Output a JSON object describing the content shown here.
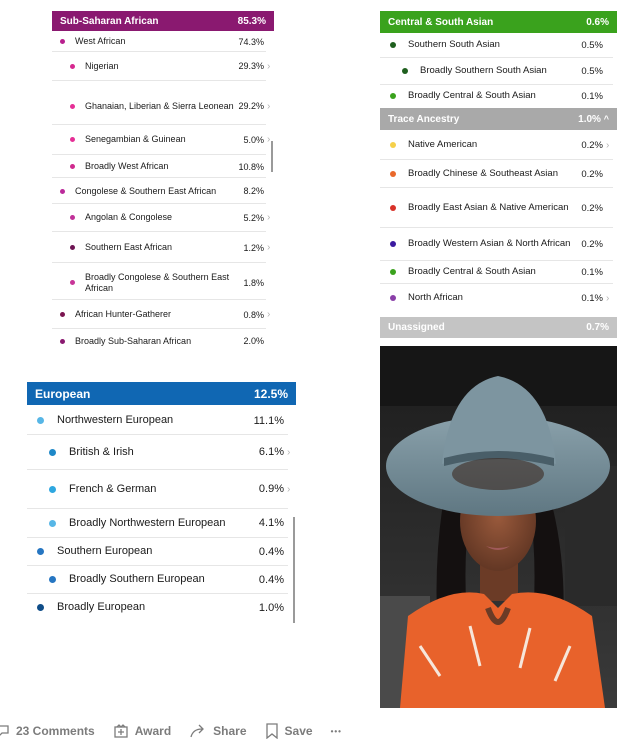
{
  "ssa": {
    "header": {
      "label": "Sub-Saharan African",
      "pct": "85.3%",
      "color": "#8a1970"
    },
    "rows": [
      {
        "label": "West African",
        "pct": "74.3%",
        "color": "#b81f8e",
        "indent": 0,
        "chev": false
      },
      {
        "label": "Nigerian",
        "pct": "29.3%",
        "color": "#d6288f",
        "indent": 1,
        "chev": true
      },
      {
        "label": "Ghanaian, Liberian & Sierra Leonean",
        "pct": "29.2%",
        "color": "#e52f96",
        "indent": 1,
        "chev": true
      },
      {
        "label": "Senegambian & Guinean",
        "pct": "5.0%",
        "color": "#e52f96",
        "indent": 1,
        "chev": true
      },
      {
        "label": "Broadly West African",
        "pct": "10.8%",
        "color": "#cf2a8e",
        "indent": 1,
        "chev": false
      },
      {
        "label": "Congolese & Southern East African",
        "pct": "8.2%",
        "color": "#bb2a9a",
        "indent": 0,
        "chev": false
      },
      {
        "label": "Angolan & Congolese",
        "pct": "5.2%",
        "color": "#c03098",
        "indent": 1,
        "chev": true
      },
      {
        "label": "Southern East African",
        "pct": "1.2%",
        "color": "#6d1453",
        "indent": 1,
        "chev": true
      },
      {
        "label": "Broadly Congolese & Southern East African",
        "pct": "1.8%",
        "color": "#c83598",
        "indent": 1,
        "chev": false
      },
      {
        "label": "African Hunter-Gatherer",
        "pct": "0.8%",
        "color": "#7b1550",
        "indent": 0,
        "chev": true
      },
      {
        "label": "Broadly Sub-Saharan African",
        "pct": "2.0%",
        "color": "#8a1970",
        "indent": 0,
        "chev": false
      }
    ]
  },
  "eur": {
    "header": {
      "label": "European",
      "pct": "12.5%",
      "color": "#1067b3"
    },
    "rows": [
      {
        "label": "Northwestern European",
        "pct": "11.1%",
        "color": "#57b6e6",
        "indent": 0,
        "chev": false
      },
      {
        "label": "British & Irish",
        "pct": "6.1%",
        "color": "#1e88c8",
        "indent": 1,
        "chev": true
      },
      {
        "label": "French & German",
        "pct": "0.9%",
        "color": "#2ea7e0",
        "indent": 1,
        "chev": true
      },
      {
        "label": "Broadly Northwestern European",
        "pct": "4.1%",
        "color": "#57b6e6",
        "indent": 1,
        "chev": false
      },
      {
        "label": "Southern European",
        "pct": "0.4%",
        "color": "#2676c2",
        "indent": 0,
        "chev": false
      },
      {
        "label": "Broadly Southern European",
        "pct": "0.4%",
        "color": "#2676c2",
        "indent": 1,
        "chev": false
      },
      {
        "label": "Broadly European",
        "pct": "1.0%",
        "color": "#0f4d88",
        "indent": 0,
        "chev": false
      }
    ]
  },
  "csa": {
    "header": {
      "label": "Central & South Asian",
      "pct": "0.6%",
      "color": "#3aa21d"
    },
    "rows": [
      {
        "label": "Southern South Asian",
        "pct": "0.5%",
        "color": "#1f5f1e",
        "indent": 0,
        "chev": false
      },
      {
        "label": "Broadly Southern South Asian",
        "pct": "0.5%",
        "color": "#1f5f1e",
        "indent": 1,
        "chev": false
      },
      {
        "label": "Broadly Central & South Asian",
        "pct": "0.1%",
        "color": "#3aa21d",
        "indent": 0,
        "chev": false
      }
    ]
  },
  "trace": {
    "header": {
      "label": "Trace Ancestry",
      "pct": "1.0%",
      "color": "#a9a9a9",
      "chev": "^"
    },
    "rows": [
      {
        "label": "Native American",
        "pct": "0.2%",
        "color": "#f5d04a",
        "chev": true
      },
      {
        "label": "Broadly Chinese & Southeast Asian",
        "pct": "0.2%",
        "color": "#e9682b",
        "chev": false
      },
      {
        "label": "Broadly East Asian & Native American",
        "pct": "0.2%",
        "color": "#d83229",
        "chev": false
      },
      {
        "label": "Broadly Western Asian & North African",
        "pct": "0.2%",
        "color": "#3b1aa0",
        "chev": false
      },
      {
        "label": "Broadly Central & South Asian",
        "pct": "0.1%",
        "color": "#3aa21d",
        "chev": false
      },
      {
        "label": "North African",
        "pct": "0.1%",
        "color": "#8a3fa8",
        "chev": true
      }
    ]
  },
  "unassigned": {
    "label": "Unassigned",
    "pct": "0.7%",
    "color": "#c4c4c4"
  },
  "footer": {
    "comments": "23 Comments",
    "award": "Award",
    "share": "Share",
    "save": "Save",
    "more": "•••"
  }
}
